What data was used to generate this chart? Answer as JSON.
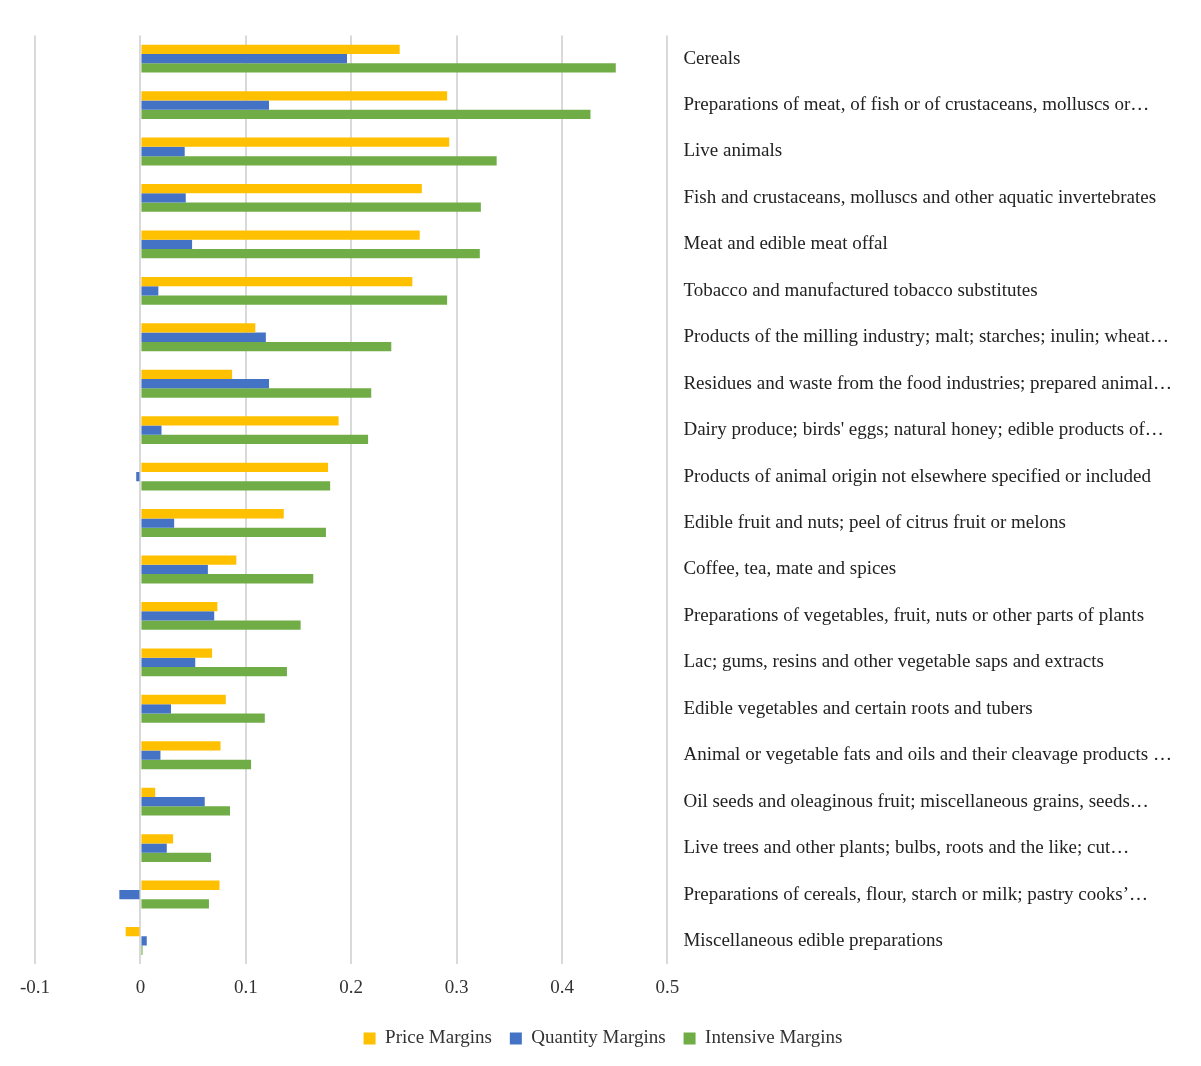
{
  "chart_data": {
    "type": "bar",
    "orientation": "horizontal",
    "categories": [
      "Cereals",
      "Preparations of meat, of fish or of crustaceans, molluscs or…",
      "Live animals",
      "Fish and crustaceans, molluscs and other aquatic invertebrates",
      "Meat and edible meat offal",
      "Tobacco and manufactured tobacco substitutes",
      "Products of the milling industry; malt; starches; inulin; wheat…",
      "Residues and waste from the food industries; prepared animal…",
      "Dairy produce; birds' eggs; natural honey; edible products of…",
      "Products of animal origin not elsewhere specified or included",
      "Edible fruit and nuts; peel of citrus fruit or melons",
      "Coffee, tea, mate and spices",
      "Preparations of vegetables, fruit, nuts or other parts of plants",
      "Lac; gums, resins and other vegetable saps and extracts",
      "Edible vegetables and certain roots and tubers",
      "Animal or vegetable fats and oils and their cleavage products …",
      "Oil seeds and oleaginous fruit; miscellaneous grains, seeds…",
      "Live trees and other plants; bulbs, roots and the like; cut…",
      "Preparations of cereals, flour, starch or milk; pastry cooks’…",
      "Miscellaneous edible preparations"
    ],
    "series": [
      {
        "name": "Price Margins",
        "color": "#ffc000",
        "values": [
          0.246,
          0.291,
          0.293,
          0.267,
          0.265,
          0.258,
          0.109,
          0.087,
          0.188,
          0.178,
          0.136,
          0.091,
          0.073,
          0.068,
          0.081,
          0.076,
          0.014,
          0.031,
          0.075,
          -0.014
        ]
      },
      {
        "name": "Quantity Margins",
        "color": "#4472c4",
        "values": [
          0.196,
          0.122,
          0.042,
          0.043,
          0.049,
          0.017,
          0.119,
          0.122,
          0.02,
          -0.004,
          0.032,
          0.064,
          0.07,
          0.052,
          0.029,
          0.019,
          0.061,
          0.025,
          -0.02,
          0.006
        ]
      },
      {
        "name": "Intensive Margins",
        "color": "#70ad47",
        "values": [
          0.451,
          0.427,
          0.338,
          0.323,
          0.322,
          0.291,
          0.238,
          0.219,
          0.216,
          0.18,
          0.176,
          0.164,
          0.152,
          0.139,
          0.118,
          0.105,
          0.085,
          0.067,
          0.065,
          0.002
        ]
      }
    ],
    "xlim": [
      -0.1,
      0.5
    ],
    "xticks": [
      -0.1,
      0,
      0.1,
      0.2,
      0.3,
      0.4,
      0.5
    ],
    "grid": "x",
    "legend": "bottom"
  }
}
